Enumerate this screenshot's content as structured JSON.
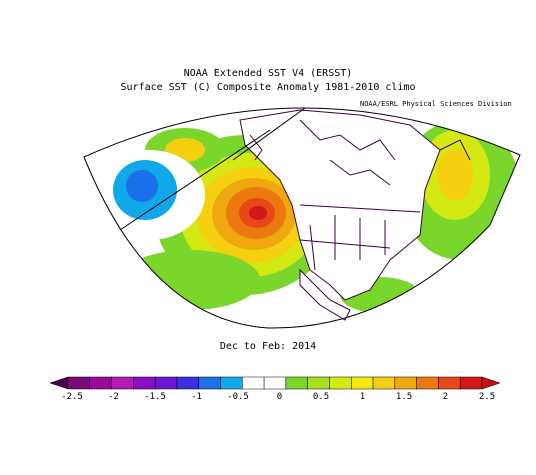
{
  "title_line1": "NOAA Extended SST V4 (ERSST)",
  "title_line2": "Surface SST (C) Composite Anomaly 1981-2010 climo",
  "credit": "NOAA/ESRL Physical Sciences Division",
  "period_label": "Dec to Feb: 2014",
  "colorbar": {
    "colors": [
      "#7a0a7a",
      "#9a0a9a",
      "#b41ab4",
      "#8a10c8",
      "#6a18d8",
      "#3a30e0",
      "#1a70e8",
      "#10a8e8",
      "#ffffff",
      "#ffffff",
      "#7ad62a",
      "#a8e020",
      "#d4e814",
      "#f4e810",
      "#f4d010",
      "#f0a810",
      "#ec7810",
      "#e84818",
      "#d41818"
    ],
    "ticks": [
      "-2.5",
      "-2",
      "-1.5",
      "-1",
      "-0.5",
      "0",
      "0.5",
      "1",
      "1.5",
      "2",
      "2.5"
    ]
  }
}
